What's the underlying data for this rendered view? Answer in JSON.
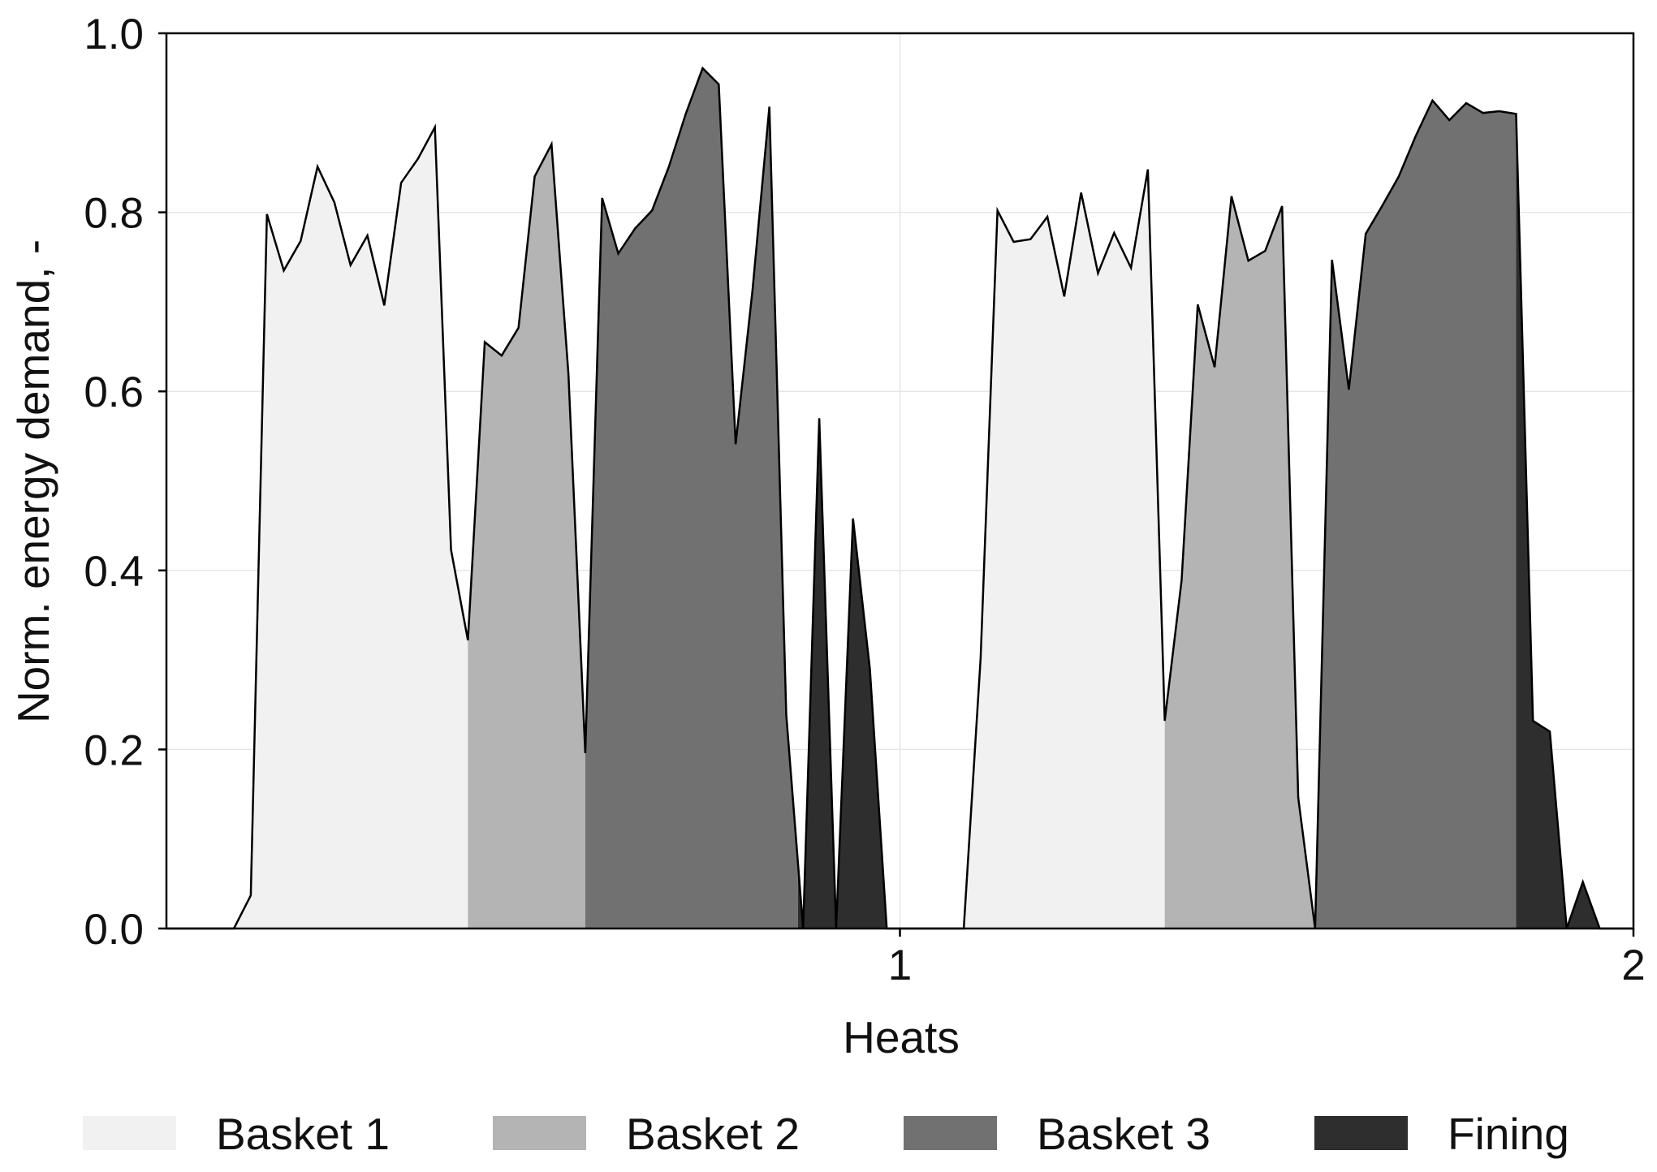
{
  "chart_data": {
    "type": "area",
    "title": "",
    "xlabel": "Heats",
    "ylabel": "Norm. energy demand, -",
    "xlim": [
      0,
      2
    ],
    "ylim": [
      0,
      1.0
    ],
    "x_ticks": [
      1,
      2
    ],
    "x_tick_labels": [
      "1",
      "2"
    ],
    "y_ticks": [
      0.0,
      0.2,
      0.4,
      0.6,
      0.8,
      1.0
    ],
    "y_tick_labels": [
      "0.0",
      "0.2",
      "0.4",
      "0.6",
      "0.8",
      "1.0"
    ],
    "grid": true,
    "legend_position": "bottom",
    "series": [
      {
        "name": "Basket 1",
        "color": "#f1f1f1"
      },
      {
        "name": "Basket 2",
        "color": "#b4b4b4"
      },
      {
        "name": "Basket 3",
        "color": "#717171"
      },
      {
        "name": "Fining",
        "color": "#2e2e2e"
      }
    ],
    "curve": [
      [
        0.0,
        0.0
      ],
      [
        0.092,
        0.0
      ],
      [
        0.115,
        0.037
      ],
      [
        0.137,
        0.798
      ],
      [
        0.16,
        0.735
      ],
      [
        0.183,
        0.768
      ],
      [
        0.206,
        0.851
      ],
      [
        0.229,
        0.811
      ],
      [
        0.251,
        0.741
      ],
      [
        0.274,
        0.774
      ],
      [
        0.297,
        0.696
      ],
      [
        0.32,
        0.833
      ],
      [
        0.343,
        0.86
      ],
      [
        0.366,
        0.895
      ],
      [
        0.388,
        0.423
      ],
      [
        0.411,
        0.322
      ],
      [
        0.434,
        0.655
      ],
      [
        0.457,
        0.64
      ],
      [
        0.48,
        0.671
      ],
      [
        0.502,
        0.84
      ],
      [
        0.525,
        0.876
      ],
      [
        0.548,
        0.62
      ],
      [
        0.571,
        0.196
      ],
      [
        0.594,
        0.816
      ],
      [
        0.616,
        0.754
      ],
      [
        0.639,
        0.782
      ],
      [
        0.662,
        0.802
      ],
      [
        0.685,
        0.851
      ],
      [
        0.708,
        0.91
      ],
      [
        0.731,
        0.961
      ],
      [
        0.753,
        0.943
      ],
      [
        0.776,
        0.541
      ],
      [
        0.799,
        0.713
      ],
      [
        0.822,
        0.918
      ],
      [
        0.845,
        0.239
      ],
      [
        0.868,
        0.0
      ],
      [
        0.89,
        0.57
      ],
      [
        0.913,
        0.0
      ],
      [
        0.936,
        0.458
      ],
      [
        0.959,
        0.29
      ],
      [
        0.982,
        0.0
      ],
      [
        1.05,
        0.0
      ],
      [
        1.087,
        0.0
      ],
      [
        1.11,
        0.302
      ],
      [
        1.133,
        0.802
      ],
      [
        1.155,
        0.767
      ],
      [
        1.178,
        0.77
      ],
      [
        1.201,
        0.795
      ],
      [
        1.224,
        0.706
      ],
      [
        1.247,
        0.822
      ],
      [
        1.27,
        0.732
      ],
      [
        1.292,
        0.777
      ],
      [
        1.315,
        0.738
      ],
      [
        1.338,
        0.848
      ],
      [
        1.361,
        0.232
      ],
      [
        1.384,
        0.389
      ],
      [
        1.406,
        0.697
      ],
      [
        1.429,
        0.627
      ],
      [
        1.452,
        0.818
      ],
      [
        1.475,
        0.746
      ],
      [
        1.498,
        0.757
      ],
      [
        1.521,
        0.807
      ],
      [
        1.543,
        0.146
      ],
      [
        1.566,
        0.0
      ],
      [
        1.589,
        0.747
      ],
      [
        1.612,
        0.602
      ],
      [
        1.635,
        0.776
      ],
      [
        1.658,
        0.808
      ],
      [
        1.68,
        0.84
      ],
      [
        1.703,
        0.885
      ],
      [
        1.726,
        0.925
      ],
      [
        1.749,
        0.903
      ],
      [
        1.772,
        0.922
      ],
      [
        1.795,
        0.911
      ],
      [
        1.817,
        0.913
      ],
      [
        1.84,
        0.91
      ],
      [
        1.863,
        0.232
      ],
      [
        1.886,
        0.22
      ],
      [
        1.909,
        0.0
      ],
      [
        1.931,
        0.052
      ],
      [
        1.954,
        0.0
      ],
      [
        2.0,
        0.0
      ]
    ],
    "segments": [
      {
        "series": "Basket 1",
        "x_start": 0.0,
        "x_end": 0.411
      },
      {
        "series": "Basket 2",
        "x_start": 0.411,
        "x_end": 0.571
      },
      {
        "series": "Basket 3",
        "x_start": 0.571,
        "x_end": 0.861
      },
      {
        "series": "Fining",
        "x_start": 0.861,
        "x_end": 1.05
      },
      {
        "series": "Basket 1",
        "x_start": 1.05,
        "x_end": 1.361
      },
      {
        "series": "Basket 2",
        "x_start": 1.361,
        "x_end": 1.566
      },
      {
        "series": "Basket 3",
        "x_start": 1.566,
        "x_end": 1.84
      },
      {
        "series": "Fining",
        "x_start": 1.84,
        "x_end": 2.0
      }
    ]
  }
}
